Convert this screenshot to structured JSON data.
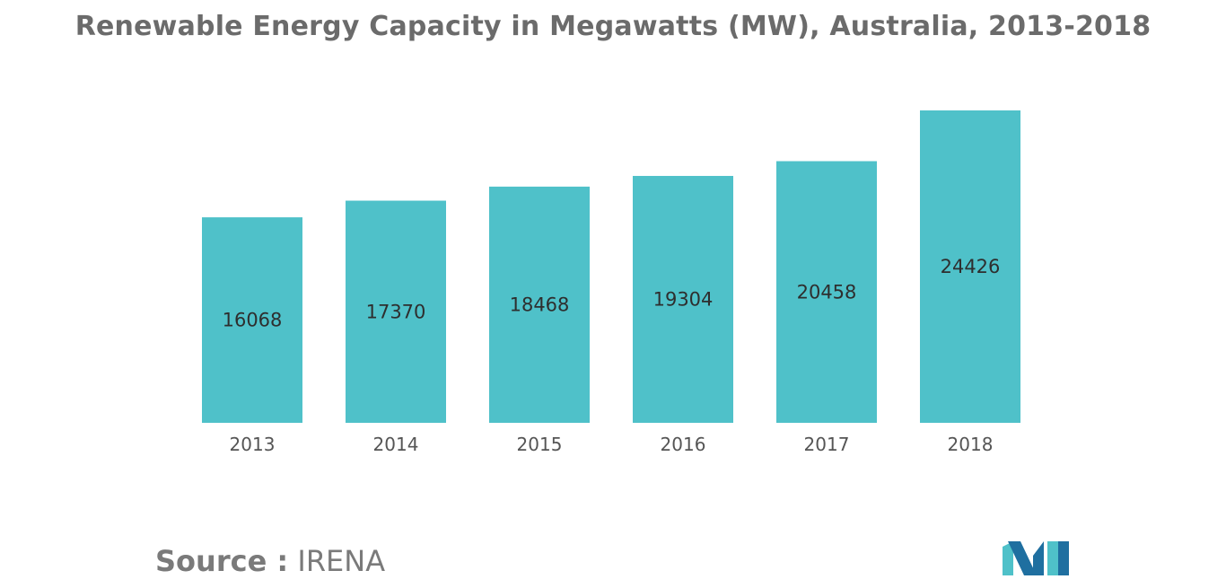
{
  "chart_data": {
    "type": "bar",
    "title": "Renewable Energy Capacity in Megawatts (MW), Australia, 2013-2018",
    "categories": [
      "2013",
      "2014",
      "2015",
      "2016",
      "2017",
      "2018"
    ],
    "values": [
      16068,
      17370,
      18468,
      19304,
      20458,
      24426
    ],
    "value_labels": [
      "16068",
      "17370",
      "18468",
      "19304",
      "20458",
      "24426"
    ],
    "xlabel": "",
    "ylabel": "",
    "ylim": [
      0,
      24426
    ],
    "grid": false,
    "legend": "none",
    "colors": {
      "bar": "#4fc1c9",
      "label": "#2e2e2e",
      "axis_text": "#555555"
    }
  },
  "source": {
    "prefix": "Source :",
    "name": "IRENA"
  },
  "logo": {
    "icon": "mordor-intelligence-logo-icon",
    "colors": {
      "dark": "#1f6fa0",
      "light": "#4fc1c9"
    }
  }
}
